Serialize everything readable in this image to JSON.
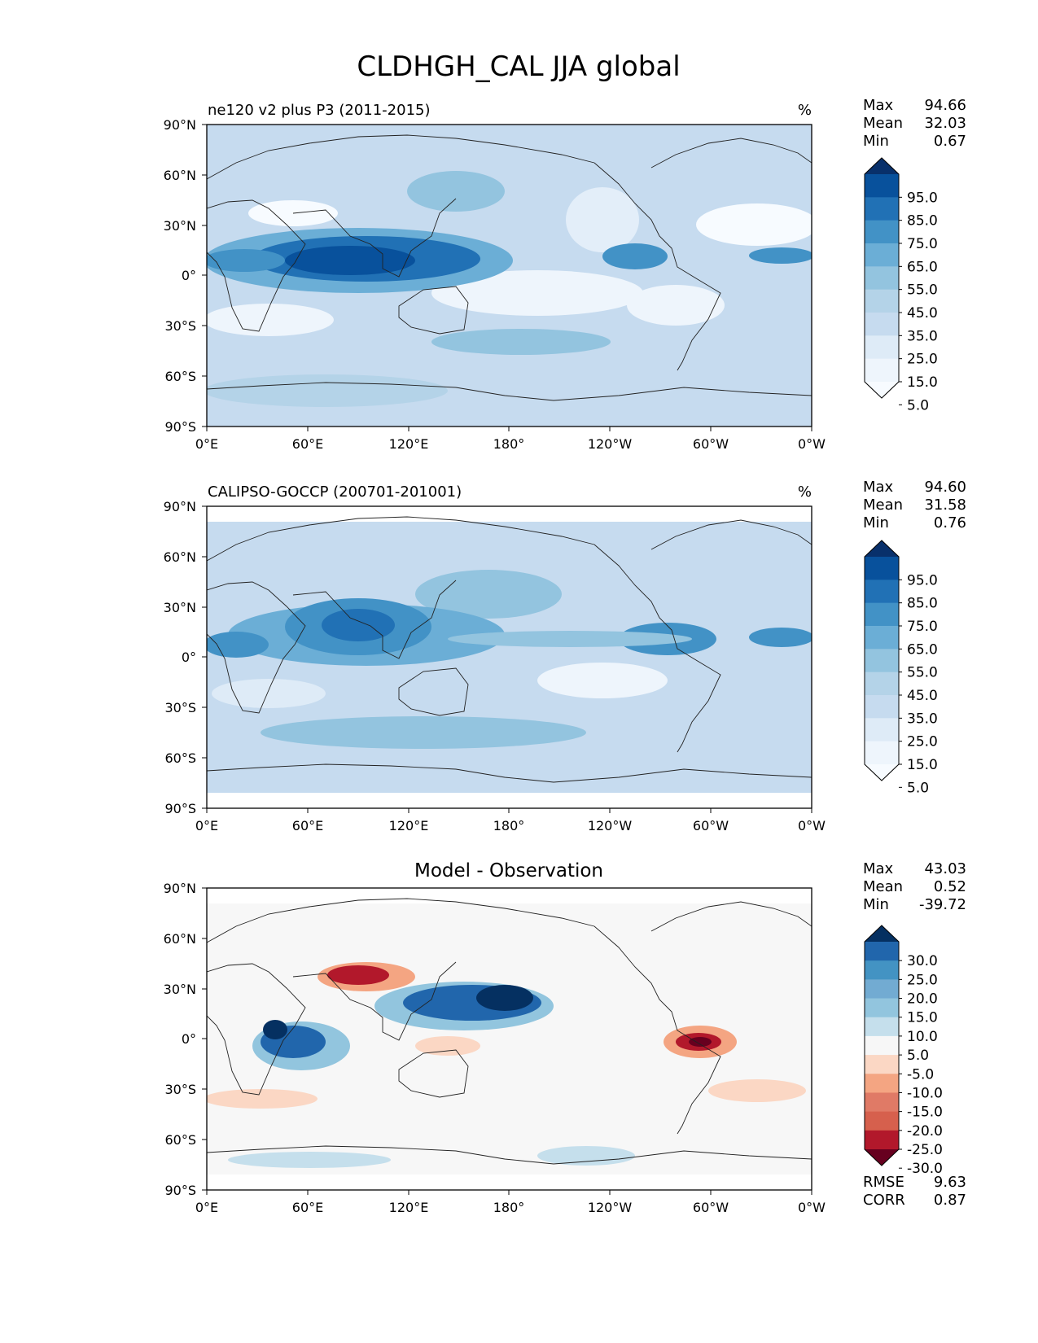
{
  "figure": {
    "title": "CLDHGH_CAL JJA global"
  },
  "axes": {
    "lat_ticks": [
      "90°N",
      "60°N",
      "30°N",
      "0°",
      "30°S",
      "60°S",
      "90°S"
    ],
    "lon_ticks": [
      "0°E",
      "60°E",
      "120°E",
      "180°",
      "120°W",
      "60°W",
      "0°W"
    ]
  },
  "panels": [
    {
      "id": "model",
      "left_title": "ne120 v2 plus P3 (2011-2015)",
      "center_title": "",
      "units": "%",
      "stats": [
        {
          "label": "Max",
          "value": "94.66"
        },
        {
          "label": "Mean",
          "value": "32.03"
        },
        {
          "label": "Min",
          "value": "0.67"
        }
      ],
      "colorbar": {
        "labels": [
          "95.0",
          "85.0",
          "75.0",
          "65.0",
          "55.0",
          "45.0",
          "35.0",
          "25.0",
          "15.0",
          "5.0"
        ],
        "colors": [
          "#08306b",
          "#08519c",
          "#2171b5",
          "#4292c6",
          "#6baed6",
          "#93c4df",
          "#b4d3e8",
          "#c6dbef",
          "#deebf7",
          "#eef5fc",
          "#f7fbff"
        ]
      }
    },
    {
      "id": "obs",
      "left_title": "CALIPSO-GOCCP (200701-201001)",
      "center_title": "",
      "units": "%",
      "stats": [
        {
          "label": "Max",
          "value": "94.60"
        },
        {
          "label": "Mean",
          "value": "31.58"
        },
        {
          "label": "Min",
          "value": "0.76"
        }
      ],
      "colorbar": {
        "labels": [
          "95.0",
          "85.0",
          "75.0",
          "65.0",
          "55.0",
          "45.0",
          "35.0",
          "25.0",
          "15.0",
          "5.0"
        ],
        "colors": [
          "#08306b",
          "#08519c",
          "#2171b5",
          "#4292c6",
          "#6baed6",
          "#93c4df",
          "#b4d3e8",
          "#c6dbef",
          "#deebf7",
          "#eef5fc",
          "#f7fbff"
        ]
      }
    },
    {
      "id": "diff",
      "left_title": "",
      "center_title": "Model - Observation",
      "units": "",
      "stats": [
        {
          "label": "Max",
          "value": "43.03"
        },
        {
          "label": "Mean",
          "value": "0.52"
        },
        {
          "label": "Min",
          "value": "-39.72"
        }
      ],
      "colorbar": {
        "labels": [
          "30.0",
          "25.0",
          "20.0",
          "15.0",
          "10.0",
          "5.0",
          "-5.0",
          "-10.0",
          "-15.0",
          "-20.0",
          "-25.0",
          "-30.0"
        ],
        "colors": [
          "#053061",
          "#2166ac",
          "#4393c3",
          "#72abd2",
          "#92c5de",
          "#c5dfec",
          "#f7f7f7",
          "#fbd7c4",
          "#f4a582",
          "#e07a66",
          "#d6604d",
          "#b2182b",
          "#67001f"
        ]
      },
      "metrics": [
        {
          "label": "RMSE",
          "value": "9.63"
        },
        {
          "label": "CORR",
          "value": "0.87"
        }
      ]
    }
  ]
}
